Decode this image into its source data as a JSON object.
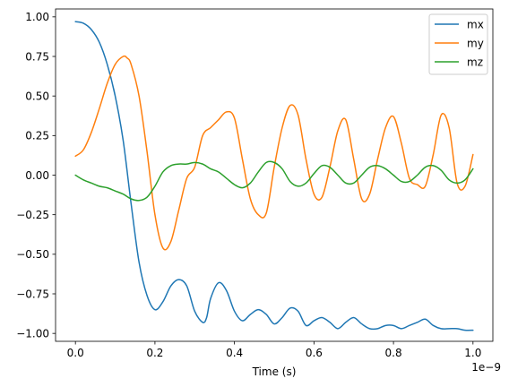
{
  "chart_data": {
    "type": "line",
    "xlabel": "Time (s)",
    "ylabel": "",
    "x_offset_label": "1e−9",
    "xlim": [
      -0.05,
      1.05
    ],
    "ylim": [
      -1.05,
      1.05
    ],
    "x_ticks": [
      0.0,
      0.2,
      0.4,
      0.6,
      0.8,
      1.0
    ],
    "x_tick_labels": [
      "0.0",
      "0.2",
      "0.4",
      "0.6",
      "0.8",
      "1.0"
    ],
    "y_ticks": [
      -1.0,
      -0.75,
      -0.5,
      -0.25,
      0.0,
      0.25,
      0.5,
      0.75,
      1.0
    ],
    "y_tick_labels": [
      "−1.00",
      "−0.75",
      "−0.50",
      "−0.25",
      "0.00",
      "0.25",
      "0.50",
      "0.75",
      "1.00"
    ],
    "grid": false,
    "legend_position": "top-right",
    "series": [
      {
        "name": "mx",
        "color": "#1f77b4",
        "x": [
          0.0,
          0.02,
          0.04,
          0.06,
          0.08,
          0.1,
          0.12,
          0.14,
          0.16,
          0.18,
          0.2,
          0.22,
          0.24,
          0.26,
          0.28,
          0.3,
          0.32,
          0.33,
          0.34,
          0.36,
          0.38,
          0.4,
          0.42,
          0.44,
          0.46,
          0.48,
          0.5,
          0.52,
          0.54,
          0.56,
          0.58,
          0.6,
          0.62,
          0.64,
          0.66,
          0.68,
          0.7,
          0.72,
          0.74,
          0.76,
          0.78,
          0.8,
          0.82,
          0.84,
          0.86,
          0.88,
          0.9,
          0.92,
          0.94,
          0.96,
          0.98,
          1.0
        ],
        "y": [
          0.97,
          0.96,
          0.92,
          0.84,
          0.7,
          0.5,
          0.22,
          -0.18,
          -0.55,
          -0.76,
          -0.85,
          -0.8,
          -0.7,
          -0.66,
          -0.7,
          -0.86,
          -0.93,
          -0.9,
          -0.78,
          -0.68,
          -0.73,
          -0.86,
          -0.92,
          -0.88,
          -0.85,
          -0.88,
          -0.94,
          -0.9,
          -0.84,
          -0.86,
          -0.95,
          -0.92,
          -0.9,
          -0.93,
          -0.97,
          -0.93,
          -0.9,
          -0.94,
          -0.97,
          -0.97,
          -0.95,
          -0.95,
          -0.97,
          -0.95,
          -0.93,
          -0.91,
          -0.95,
          -0.97,
          -0.97,
          -0.97,
          -0.98,
          -0.98
        ]
      },
      {
        "name": "my",
        "color": "#ff7f0e",
        "x": [
          0.0,
          0.02,
          0.04,
          0.06,
          0.08,
          0.1,
          0.12,
          0.13,
          0.14,
          0.16,
          0.18,
          0.2,
          0.22,
          0.24,
          0.26,
          0.28,
          0.3,
          0.32,
          0.34,
          0.36,
          0.38,
          0.4,
          0.42,
          0.44,
          0.46,
          0.48,
          0.5,
          0.52,
          0.54,
          0.56,
          0.58,
          0.6,
          0.62,
          0.64,
          0.66,
          0.68,
          0.7,
          0.72,
          0.74,
          0.76,
          0.78,
          0.8,
          0.82,
          0.84,
          0.86,
          0.88,
          0.9,
          0.92,
          0.94,
          0.96,
          0.98,
          1.0
        ],
        "y": [
          0.12,
          0.16,
          0.27,
          0.42,
          0.58,
          0.7,
          0.75,
          0.74,
          0.7,
          0.5,
          0.15,
          -0.25,
          -0.46,
          -0.42,
          -0.22,
          -0.02,
          0.05,
          0.25,
          0.3,
          0.35,
          0.4,
          0.36,
          0.1,
          -0.15,
          -0.25,
          -0.24,
          0.05,
          0.3,
          0.44,
          0.38,
          0.1,
          -0.12,
          -0.14,
          0.05,
          0.28,
          0.35,
          0.1,
          -0.15,
          -0.12,
          0.1,
          0.3,
          0.37,
          0.2,
          -0.02,
          -0.06,
          -0.07,
          0.13,
          0.38,
          0.3,
          -0.05,
          -0.07,
          0.13
        ]
      },
      {
        "name": "mz",
        "color": "#2ca02c",
        "x": [
          0.0,
          0.02,
          0.04,
          0.06,
          0.08,
          0.1,
          0.12,
          0.14,
          0.16,
          0.18,
          0.2,
          0.22,
          0.24,
          0.26,
          0.28,
          0.3,
          0.32,
          0.34,
          0.36,
          0.38,
          0.4,
          0.42,
          0.44,
          0.46,
          0.48,
          0.5,
          0.52,
          0.54,
          0.56,
          0.58,
          0.6,
          0.62,
          0.64,
          0.66,
          0.68,
          0.7,
          0.72,
          0.74,
          0.76,
          0.78,
          0.8,
          0.82,
          0.84,
          0.86,
          0.88,
          0.9,
          0.92,
          0.94,
          0.96,
          0.98,
          1.0
        ],
        "y": [
          0.0,
          -0.03,
          -0.05,
          -0.07,
          -0.08,
          -0.1,
          -0.12,
          -0.15,
          -0.16,
          -0.14,
          -0.07,
          0.02,
          0.06,
          0.07,
          0.07,
          0.08,
          0.07,
          0.04,
          0.02,
          -0.02,
          -0.06,
          -0.08,
          -0.05,
          0.02,
          0.08,
          0.08,
          0.04,
          -0.04,
          -0.07,
          -0.05,
          0.01,
          0.06,
          0.05,
          0.0,
          -0.05,
          -0.05,
          0.0,
          0.05,
          0.06,
          0.04,
          0.0,
          -0.04,
          -0.04,
          0.0,
          0.05,
          0.06,
          0.03,
          -0.03,
          -0.05,
          -0.03,
          0.04
        ]
      }
    ]
  }
}
